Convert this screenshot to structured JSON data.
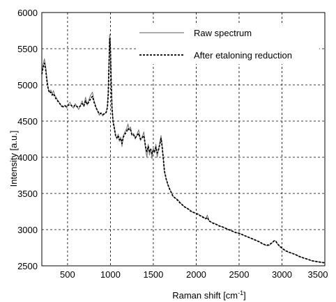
{
  "chart_data": {
    "type": "line",
    "xlabel": "Raman shift [cm",
    "xlabel_sup": "-1",
    "xlabel_end": "]",
    "ylabel": "Intensity [a.u.]",
    "xlim": [
      200,
      3500
    ],
    "ylim": [
      2500,
      6000
    ],
    "xticks": [
      500,
      1000,
      1500,
      2000,
      2500,
      3000,
      3500
    ],
    "yticks": [
      2500,
      3000,
      3500,
      4000,
      4500,
      5000,
      5500,
      6000
    ],
    "grid": true,
    "legend_position": "top-right",
    "series": [
      {
        "name": "Raw spectrum",
        "style": "solid",
        "color": "#7a7a7a",
        "points": [
          [
            200,
            5180
          ],
          [
            215,
            5280
          ],
          [
            230,
            5360
          ],
          [
            245,
            5260
          ],
          [
            260,
            5080
          ],
          [
            275,
            4950
          ],
          [
            290,
            4900
          ],
          [
            305,
            4930
          ],
          [
            320,
            4870
          ],
          [
            335,
            4920
          ],
          [
            350,
            4860
          ],
          [
            370,
            4820
          ],
          [
            390,
            4780
          ],
          [
            410,
            4750
          ],
          [
            430,
            4700
          ],
          [
            450,
            4690
          ],
          [
            470,
            4720
          ],
          [
            490,
            4680
          ],
          [
            510,
            4740
          ],
          [
            530,
            4760
          ],
          [
            550,
            4700
          ],
          [
            570,
            4680
          ],
          [
            590,
            4740
          ],
          [
            610,
            4700
          ],
          [
            630,
            4660
          ],
          [
            650,
            4720
          ],
          [
            670,
            4780
          ],
          [
            690,
            4700
          ],
          [
            710,
            4830
          ],
          [
            730,
            4720
          ],
          [
            750,
            4800
          ],
          [
            770,
            4860
          ],
          [
            790,
            4900
          ],
          [
            810,
            4780
          ],
          [
            830,
            4700
          ],
          [
            850,
            4640
          ],
          [
            870,
            4580
          ],
          [
            890,
            4610
          ],
          [
            910,
            4570
          ],
          [
            930,
            4600
          ],
          [
            950,
            4620
          ],
          [
            965,
            4700
          ],
          [
            975,
            4900
          ],
          [
            985,
            5400
          ],
          [
            992,
            5700
          ],
          [
            1000,
            5550
          ],
          [
            1008,
            5100
          ],
          [
            1018,
            4700
          ],
          [
            1030,
            4500
          ],
          [
            1045,
            4420
          ],
          [
            1060,
            4300
          ],
          [
            1075,
            4250
          ],
          [
            1090,
            4320
          ],
          [
            1105,
            4220
          ],
          [
            1120,
            4280
          ],
          [
            1135,
            4150
          ],
          [
            1150,
            4300
          ],
          [
            1170,
            4350
          ],
          [
            1190,
            4400
          ],
          [
            1205,
            4460
          ],
          [
            1220,
            4380
          ],
          [
            1235,
            4420
          ],
          [
            1250,
            4300
          ],
          [
            1270,
            4330
          ],
          [
            1290,
            4250
          ],
          [
            1310,
            4320
          ],
          [
            1330,
            4380
          ],
          [
            1350,
            4230
          ],
          [
            1370,
            4280
          ],
          [
            1390,
            4350
          ],
          [
            1410,
            4100
          ],
          [
            1425,
            4000
          ],
          [
            1440,
            4180
          ],
          [
            1455,
            4030
          ],
          [
            1470,
            4120
          ],
          [
            1485,
            3980
          ],
          [
            1500,
            4130
          ],
          [
            1515,
            4060
          ],
          [
            1530,
            4180
          ],
          [
            1545,
            4000
          ],
          [
            1560,
            4100
          ],
          [
            1575,
            4200
          ],
          [
            1590,
            4300
          ],
          [
            1600,
            4200
          ],
          [
            1615,
            4000
          ],
          [
            1630,
            3800
          ],
          [
            1650,
            3700
          ],
          [
            1670,
            3620
          ],
          [
            1690,
            3560
          ],
          [
            1710,
            3520
          ],
          [
            1730,
            3460
          ],
          [
            1750,
            3440
          ],
          [
            1780,
            3420
          ],
          [
            1810,
            3380
          ],
          [
            1840,
            3340
          ],
          [
            1870,
            3310
          ],
          [
            1900,
            3290
          ],
          [
            1930,
            3270
          ],
          [
            1960,
            3240
          ],
          [
            1990,
            3230
          ],
          [
            2020,
            3220
          ],
          [
            2050,
            3190
          ],
          [
            2080,
            3180
          ],
          [
            2110,
            3150
          ],
          [
            2130,
            3200
          ],
          [
            2150,
            3120
          ],
          [
            2180,
            3100
          ],
          [
            2210,
            3090
          ],
          [
            2240,
            3070
          ],
          [
            2270,
            3050
          ],
          [
            2300,
            3040
          ],
          [
            2340,
            3020
          ],
          [
            2380,
            3000
          ],
          [
            2420,
            2980
          ],
          [
            2460,
            2960
          ],
          [
            2500,
            2950
          ],
          [
            2540,
            2930
          ],
          [
            2580,
            2910
          ],
          [
            2620,
            2890
          ],
          [
            2660,
            2870
          ],
          [
            2700,
            2850
          ],
          [
            2740,
            2830
          ],
          [
            2780,
            2800
          ],
          [
            2820,
            2780
          ],
          [
            2850,
            2780
          ],
          [
            2880,
            2810
          ],
          [
            2910,
            2850
          ],
          [
            2930,
            2840
          ],
          [
            2950,
            2800
          ],
          [
            2980,
            2760
          ],
          [
            3010,
            2730
          ],
          [
            3050,
            2700
          ],
          [
            3100,
            2680
          ],
          [
            3150,
            2660
          ],
          [
            3200,
            2630
          ],
          [
            3250,
            2610
          ],
          [
            3300,
            2590
          ],
          [
            3350,
            2570
          ],
          [
            3400,
            2560
          ],
          [
            3450,
            2550
          ],
          [
            3500,
            2540
          ]
        ]
      },
      {
        "name": "After etaloning reduction",
        "style": "dashed",
        "color": "#000000",
        "points": [
          [
            200,
            5150
          ],
          [
            215,
            5240
          ],
          [
            230,
            5300
          ],
          [
            245,
            5210
          ],
          [
            260,
            5050
          ],
          [
            275,
            4940
          ],
          [
            290,
            4890
          ],
          [
            305,
            4900
          ],
          [
            320,
            4860
          ],
          [
            335,
            4880
          ],
          [
            350,
            4840
          ],
          [
            370,
            4800
          ],
          [
            390,
            4770
          ],
          [
            410,
            4740
          ],
          [
            430,
            4710
          ],
          [
            450,
            4700
          ],
          [
            470,
            4710
          ],
          [
            490,
            4700
          ],
          [
            510,
            4720
          ],
          [
            530,
            4730
          ],
          [
            550,
            4710
          ],
          [
            570,
            4700
          ],
          [
            590,
            4720
          ],
          [
            610,
            4700
          ],
          [
            630,
            4690
          ],
          [
            650,
            4710
          ],
          [
            670,
            4740
          ],
          [
            690,
            4710
          ],
          [
            710,
            4780
          ],
          [
            730,
            4730
          ],
          [
            750,
            4770
          ],
          [
            770,
            4810
          ],
          [
            790,
            4840
          ],
          [
            810,
            4760
          ],
          [
            830,
            4690
          ],
          [
            850,
            4640
          ],
          [
            870,
            4600
          ],
          [
            890,
            4610
          ],
          [
            910,
            4590
          ],
          [
            930,
            4600
          ],
          [
            950,
            4620
          ],
          [
            965,
            4690
          ],
          [
            975,
            4880
          ],
          [
            985,
            5350
          ],
          [
            992,
            5640
          ],
          [
            1000,
            5500
          ],
          [
            1008,
            5080
          ],
          [
            1018,
            4690
          ],
          [
            1030,
            4500
          ],
          [
            1045,
            4400
          ],
          [
            1060,
            4300
          ],
          [
            1075,
            4270
          ],
          [
            1090,
            4300
          ],
          [
            1105,
            4240
          ],
          [
            1120,
            4260
          ],
          [
            1135,
            4190
          ],
          [
            1150,
            4280
          ],
          [
            1170,
            4320
          ],
          [
            1190,
            4360
          ],
          [
            1205,
            4400
          ],
          [
            1220,
            4370
          ],
          [
            1235,
            4380
          ],
          [
            1250,
            4310
          ],
          [
            1270,
            4310
          ],
          [
            1290,
            4270
          ],
          [
            1310,
            4300
          ],
          [
            1330,
            4330
          ],
          [
            1350,
            4250
          ],
          [
            1370,
            4270
          ],
          [
            1390,
            4300
          ],
          [
            1410,
            4140
          ],
          [
            1425,
            4080
          ],
          [
            1440,
            4150
          ],
          [
            1455,
            4080
          ],
          [
            1470,
            4110
          ],
          [
            1485,
            4050
          ],
          [
            1500,
            4100
          ],
          [
            1515,
            4080
          ],
          [
            1530,
            4140
          ],
          [
            1545,
            4060
          ],
          [
            1560,
            4100
          ],
          [
            1575,
            4180
          ],
          [
            1590,
            4260
          ],
          [
            1600,
            4180
          ],
          [
            1615,
            4000
          ],
          [
            1630,
            3810
          ],
          [
            1650,
            3700
          ],
          [
            1670,
            3620
          ],
          [
            1690,
            3560
          ],
          [
            1710,
            3510
          ],
          [
            1730,
            3460
          ],
          [
            1750,
            3440
          ],
          [
            1780,
            3410
          ],
          [
            1810,
            3370
          ],
          [
            1840,
            3340
          ],
          [
            1870,
            3310
          ],
          [
            1900,
            3290
          ],
          [
            1930,
            3260
          ],
          [
            1960,
            3240
          ],
          [
            1990,
            3230
          ],
          [
            2020,
            3210
          ],
          [
            2050,
            3190
          ],
          [
            2080,
            3170
          ],
          [
            2110,
            3150
          ],
          [
            2130,
            3170
          ],
          [
            2150,
            3120
          ],
          [
            2180,
            3100
          ],
          [
            2210,
            3080
          ],
          [
            2240,
            3070
          ],
          [
            2270,
            3050
          ],
          [
            2300,
            3040
          ],
          [
            2340,
            3020
          ],
          [
            2380,
            3000
          ],
          [
            2420,
            2980
          ],
          [
            2460,
            2960
          ],
          [
            2500,
            2950
          ],
          [
            2540,
            2930
          ],
          [
            2580,
            2910
          ],
          [
            2620,
            2890
          ],
          [
            2660,
            2870
          ],
          [
            2700,
            2850
          ],
          [
            2740,
            2830
          ],
          [
            2780,
            2800
          ],
          [
            2820,
            2785
          ],
          [
            2850,
            2790
          ],
          [
            2880,
            2815
          ],
          [
            2910,
            2845
          ],
          [
            2930,
            2835
          ],
          [
            2950,
            2800
          ],
          [
            2980,
            2765
          ],
          [
            3010,
            2735
          ],
          [
            3050,
            2705
          ],
          [
            3100,
            2680
          ],
          [
            3150,
            2660
          ],
          [
            3200,
            2630
          ],
          [
            3250,
            2610
          ],
          [
            3300,
            2590
          ],
          [
            3350,
            2570
          ],
          [
            3400,
            2560
          ],
          [
            3450,
            2550
          ],
          [
            3500,
            2540
          ]
        ]
      }
    ]
  }
}
